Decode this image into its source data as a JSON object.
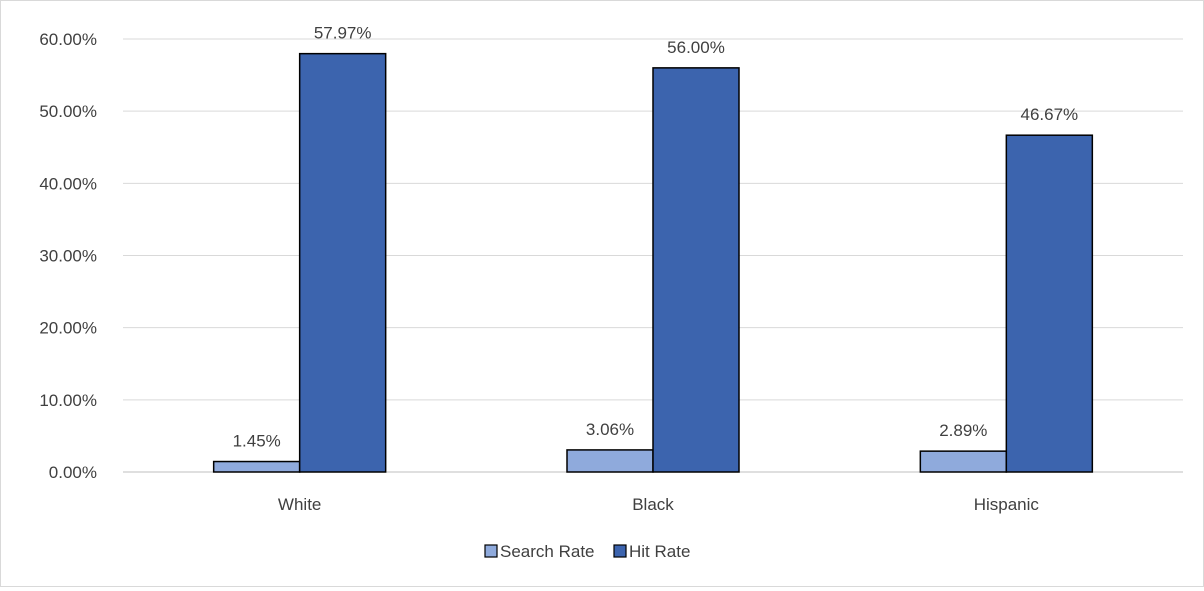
{
  "chart_data": {
    "type": "bar",
    "title": "",
    "xlabel": "",
    "ylabel": "",
    "categories": [
      "White",
      "Black",
      "Hispanic"
    ],
    "series": [
      {
        "name": "Search Rate",
        "values": [
          1.45,
          3.06,
          2.89
        ],
        "labels": [
          "1.45%",
          "3.06%",
          "2.89%"
        ],
        "color": "#8faadc"
      },
      {
        "name": "Hit Rate",
        "values": [
          57.97,
          56.0,
          46.67
        ],
        "labels": [
          "57.97%",
          "56.00%",
          "46.67%"
        ],
        "color": "#3c64ae"
      }
    ],
    "ylim": [
      0,
      60
    ],
    "yticks": [
      0,
      10,
      20,
      30,
      40,
      50,
      60
    ],
    "ytick_labels": [
      "0.00%",
      "10.00%",
      "20.00%",
      "30.00%",
      "40.00%",
      "50.00%",
      "60.00%"
    ],
    "grid": true,
    "legend_position": "bottom",
    "colors": {
      "gridline": "#d9d9d9",
      "axis": "#bfbfbf",
      "text": "#404040",
      "bar_outline": "#000000"
    }
  }
}
